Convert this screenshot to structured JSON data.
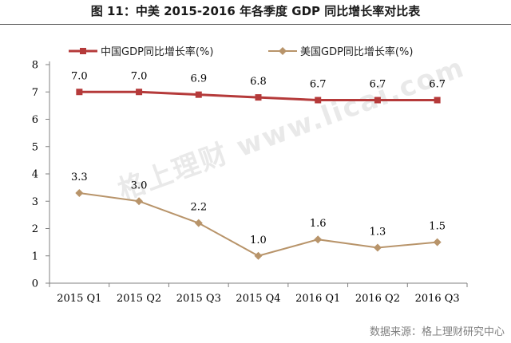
{
  "title": "图 11：中美 2015-2016 年各季度 GDP 同比增长率对比表",
  "watermark": "格上理财  www.licai.com",
  "source": "数据来源：格上理财研究中心",
  "colors": {
    "china": "#b53a3a",
    "usa": "#b8946a",
    "axis": "#808080"
  },
  "chart_data": {
    "type": "line",
    "categories": [
      "2015 Q1",
      "2015 Q2",
      "2015 Q3",
      "2015 Q4",
      "2016 Q1",
      "2016 Q2",
      "2016 Q3"
    ],
    "series": [
      {
        "name": "中国GDP同比增长率(%)",
        "values": [
          7.0,
          7.0,
          6.9,
          6.8,
          6.7,
          6.7,
          6.7
        ],
        "marker": "square",
        "color": "#b53a3a"
      },
      {
        "name": "美国GDP同比增长率(%)",
        "values": [
          3.3,
          3.0,
          2.2,
          1.0,
          1.6,
          1.3,
          1.5
        ],
        "marker": "diamond",
        "color": "#b8946a"
      }
    ],
    "ylim": [
      0,
      8
    ],
    "yticks": [
      0,
      1,
      2,
      3,
      4,
      5,
      6,
      7,
      8
    ],
    "grid": false,
    "legend": "top",
    "data_labels": true
  }
}
